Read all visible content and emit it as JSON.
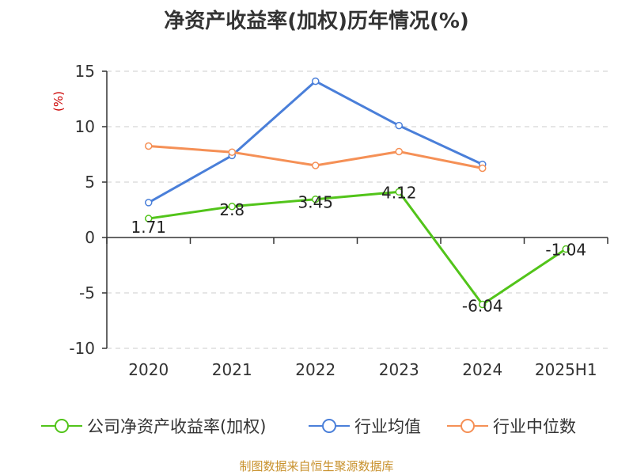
{
  "title": "净资产收益率(加权)历年情况(%)",
  "source": "制图数据来自恒生聚源数据库",
  "chart_data": {
    "type": "line",
    "title": "净资产收益率(加权)历年情况(%)",
    "ylabel": "(%)",
    "categories": [
      "2020",
      "2021",
      "2022",
      "2023",
      "2024",
      "2025H1"
    ],
    "ylim": [
      -10,
      15
    ],
    "yticks": [
      "15",
      "10",
      "5",
      "0",
      "-5",
      "-10"
    ],
    "grid": true,
    "legend_position": "bottom",
    "series": [
      {
        "name": "公司净资产收益率(加权)",
        "color": "#52c41a",
        "values": [
          1.71,
          2.8,
          3.45,
          4.12,
          -6.04,
          -1.04
        ],
        "labels": [
          "1.71",
          "2.8",
          "3.45",
          "4.12",
          "-6.04",
          "-1.04"
        ]
      },
      {
        "name": "行业均值",
        "color": "#4a7fd9",
        "values": [
          3.15,
          7.4,
          14.1,
          10.1,
          6.6,
          null
        ]
      },
      {
        "name": "行业中位数",
        "color": "#f59056",
        "values": [
          8.25,
          7.7,
          6.5,
          7.75,
          6.25,
          null
        ]
      }
    ]
  }
}
